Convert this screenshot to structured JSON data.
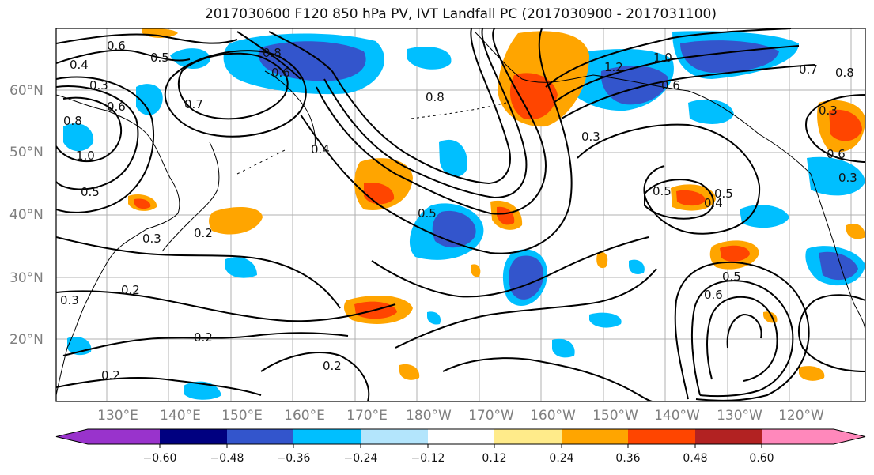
{
  "title": "2017030600 F120 850 hPa PV, IVT Landfall PC (2017030900 - 2017031100)",
  "lat_labels": [
    "60°N",
    "50°N",
    "40°N",
    "30°N",
    "20°N"
  ],
  "lon_labels": [
    "130°E",
    "140°E",
    "150°E",
    "160°E",
    "170°E",
    "180°W",
    "170°W",
    "160°W",
    "150°W",
    "140°W",
    "130°W",
    "120°W"
  ],
  "colorbar": {
    "ticks": [
      "−0.60",
      "−0.48",
      "−0.36",
      "−0.24",
      "−0.12",
      "0.12",
      "0.24",
      "0.36",
      "0.48",
      "0.60"
    ],
    "colors": [
      "#9933cc",
      "#000080",
      "#3355cc",
      "#00bfff",
      "#b3e5fc",
      "#ffffff",
      "#ffeb8a",
      "#ffa500",
      "#ff4500",
      "#b22222",
      "#ff88bb"
    ]
  },
  "contour_labels": [
    "0.6",
    "0.5",
    "0.4",
    "0.3",
    "0.6",
    "0.7",
    "0.8",
    "0.6",
    "1.0",
    "0.5",
    "0.8",
    "0.4",
    "0.8",
    "0.5",
    "1.2",
    "1.0",
    "0.6",
    "0.7",
    "0.8",
    "0.3",
    "0.3",
    "0.5",
    "0.4",
    "0.5",
    "0.6",
    "0.2",
    "0.2",
    "0.2",
    "0.2",
    "0.3",
    "0.6",
    "0.3",
    "0.5",
    "0.3",
    "0.2"
  ]
}
